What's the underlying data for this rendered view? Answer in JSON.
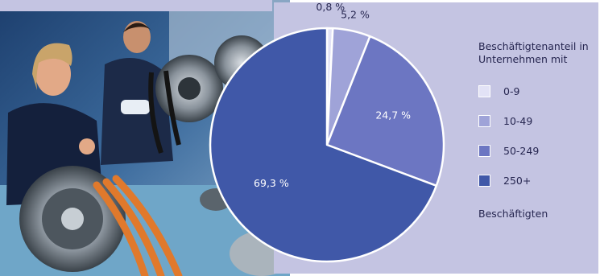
{
  "chart_data": {
    "type": "pie",
    "legend_title": "Beschäftigtenanteil in Unternehmen mit",
    "legend_footer": "Beschäftigten",
    "legend_position": "right",
    "slices": [
      {
        "label": "0-9",
        "value": 0.8,
        "value_label": "0,8 %",
        "color": "#e2e2f6"
      },
      {
        "label": "10-49",
        "value": 5.2,
        "value_label": "5,2 %",
        "color": "#9fa3d8"
      },
      {
        "label": "50-249",
        "value": 24.7,
        "value_label": "24,7 %",
        "color": "#6c76c2"
      },
      {
        "label": "250+",
        "value": 69.3,
        "value_label": "69,3 %",
        "color": "#4058a8"
      }
    ]
  },
  "colors": {
    "panel_background": "#c4c4e2",
    "text": "#262650",
    "slice_border": "#ffffff"
  }
}
